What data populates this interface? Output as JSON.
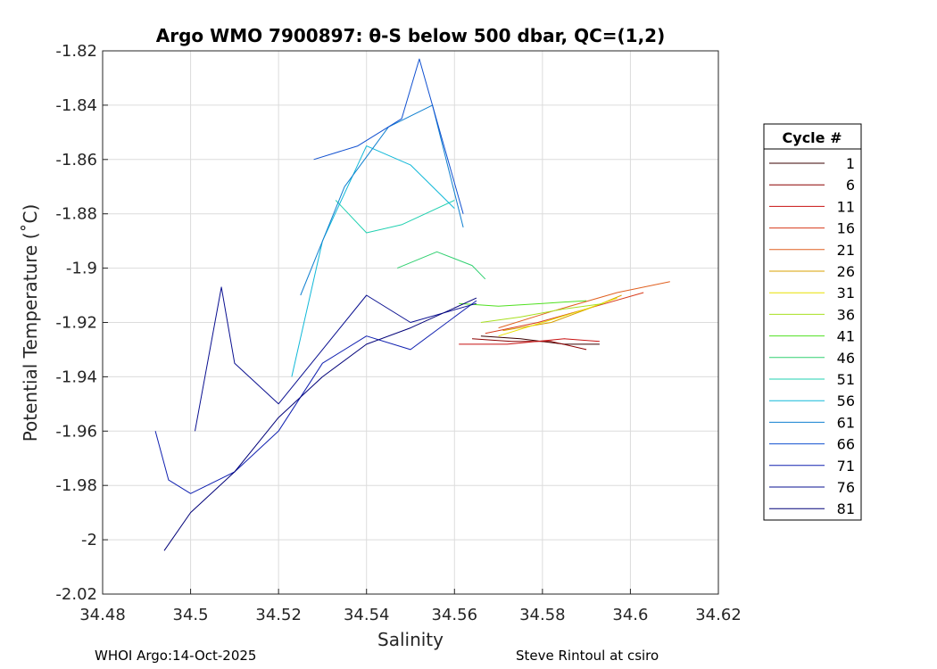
{
  "chart_data": {
    "type": "line",
    "title": "Argo WMO 7900897: θ-S below 500 dbar,  QC=(1,2)",
    "xlabel": "Salinity",
    "ylabel": "Potential Temperature (˚C)",
    "xlim": [
      34.48,
      34.62
    ],
    "ylim": [
      -2.02,
      -1.82
    ],
    "xticks": [
      "34.48",
      "34.5",
      "34.52",
      "34.54",
      "34.56",
      "34.58",
      "34.6",
      "34.62"
    ],
    "yticks": [
      "-1.82",
      "-1.84",
      "-1.86",
      "-1.88",
      "-1.9",
      "-1.92",
      "-1.94",
      "-1.96",
      "-1.98",
      "-2",
      "-2.02"
    ],
    "grid": true,
    "legend": {
      "title": "Cycle #",
      "placement": "right-outside",
      "entries": [
        {
          "label": "1",
          "color": "#3a0000"
        },
        {
          "label": "6",
          "color": "#8b0000"
        },
        {
          "label": "11",
          "color": "#c81010"
        },
        {
          "label": "16",
          "color": "#d83a1a"
        },
        {
          "label": "21",
          "color": "#e06020"
        },
        {
          "label": "26",
          "color": "#d8a000"
        },
        {
          "label": "31",
          "color": "#e8e000"
        },
        {
          "label": "36",
          "color": "#a8e020"
        },
        {
          "label": "41",
          "color": "#50e020"
        },
        {
          "label": "46",
          "color": "#30d070"
        },
        {
          "label": "51",
          "color": "#20d0b0"
        },
        {
          "label": "56",
          "color": "#10b8d8"
        },
        {
          "label": "61",
          "color": "#1080d0"
        },
        {
          "label": "66",
          "color": "#1050d0"
        },
        {
          "label": "71",
          "color": "#1020b0"
        },
        {
          "label": "76",
          "color": "#0a1090"
        },
        {
          "label": "81",
          "color": "#000078"
        }
      ]
    },
    "series": [
      {
        "color": "#3a0000",
        "x": [
          34.566,
          34.575,
          34.585,
          34.593
        ],
        "y": [
          -1.925,
          -1.926,
          -1.928,
          -1.928
        ]
      },
      {
        "color": "#8b0000",
        "x": [
          34.564,
          34.573,
          34.582,
          34.59
        ],
        "y": [
          -1.926,
          -1.927,
          -1.927,
          -1.93
        ]
      },
      {
        "color": "#c81010",
        "x": [
          34.561,
          34.572,
          34.585,
          34.593
        ],
        "y": [
          -1.928,
          -1.928,
          -1.926,
          -1.927
        ]
      },
      {
        "color": "#d83a1a",
        "x": [
          34.567,
          34.579,
          34.59,
          34.603
        ],
        "y": [
          -1.924,
          -1.92,
          -1.915,
          -1.909
        ]
      },
      {
        "color": "#e06020",
        "x": [
          34.57,
          34.582,
          34.597,
          34.609
        ],
        "y": [
          -1.922,
          -1.916,
          -1.909,
          -1.905
        ]
      },
      {
        "color": "#d8a000",
        "x": [
          34.571,
          34.582,
          34.592,
          34.598
        ],
        "y": [
          -1.923,
          -1.92,
          -1.914,
          -1.91
        ]
      },
      {
        "color": "#e8e000",
        "x": [
          34.57,
          34.58,
          34.59,
          34.597
        ],
        "y": [
          -1.925,
          -1.92,
          -1.915,
          -1.911
        ]
      },
      {
        "color": "#a8e020",
        "x": [
          34.566,
          34.575,
          34.585,
          34.594
        ],
        "y": [
          -1.92,
          -1.918,
          -1.915,
          -1.913
        ]
      },
      {
        "color": "#50e020",
        "x": [
          34.561,
          34.57,
          34.58,
          34.59
        ],
        "y": [
          -1.913,
          -1.914,
          -1.913,
          -1.912
        ]
      },
      {
        "color": "#30d070",
        "x": [
          34.547,
          34.556,
          34.564,
          34.567
        ],
        "y": [
          -1.9,
          -1.894,
          -1.899,
          -1.904
        ]
      },
      {
        "color": "#20d0b0",
        "x": [
          34.533,
          34.54,
          34.548,
          34.56
        ],
        "y": [
          -1.875,
          -1.887,
          -1.884,
          -1.875
        ]
      },
      {
        "color": "#10b8d8",
        "x": [
          34.523,
          34.53,
          34.54,
          34.55,
          34.56
        ],
        "y": [
          -1.94,
          -1.89,
          -1.855,
          -1.862,
          -1.878
        ]
      },
      {
        "color": "#1080d0",
        "x": [
          34.525,
          34.535,
          34.545,
          34.555,
          34.562
        ],
        "y": [
          -1.91,
          -1.87,
          -1.848,
          -1.84,
          -1.885
        ]
      },
      {
        "color": "#1050d0",
        "x": [
          34.528,
          34.538,
          34.548,
          34.552,
          34.562
        ],
        "y": [
          -1.86,
          -1.855,
          -1.845,
          -1.823,
          -1.88
        ]
      },
      {
        "color": "#1020b0",
        "x": [
          34.492,
          34.495,
          34.5,
          34.51,
          34.52,
          34.53,
          34.54,
          34.55,
          34.565
        ],
        "y": [
          -1.96,
          -1.978,
          -1.983,
          -1.975,
          -1.96,
          -1.935,
          -1.925,
          -1.93,
          -1.912
        ]
      },
      {
        "color": "#0a1090",
        "x": [
          34.501,
          34.507,
          34.51,
          34.52,
          34.53,
          34.54,
          34.55,
          34.565
        ],
        "y": [
          -1.96,
          -1.907,
          -1.935,
          -1.95,
          -1.93,
          -1.91,
          -1.92,
          -1.913
        ]
      },
      {
        "color": "#000078",
        "x": [
          34.494,
          34.5,
          34.51,
          34.52,
          34.53,
          34.54,
          34.55,
          34.565
        ],
        "y": [
          -2.004,
          -1.99,
          -1.975,
          -1.955,
          -1.94,
          -1.928,
          -1.922,
          -1.911
        ]
      }
    ]
  },
  "footer": {
    "left": "WHOI Argo:14-Oct-2025",
    "right": "Steve Rintoul at csiro"
  }
}
